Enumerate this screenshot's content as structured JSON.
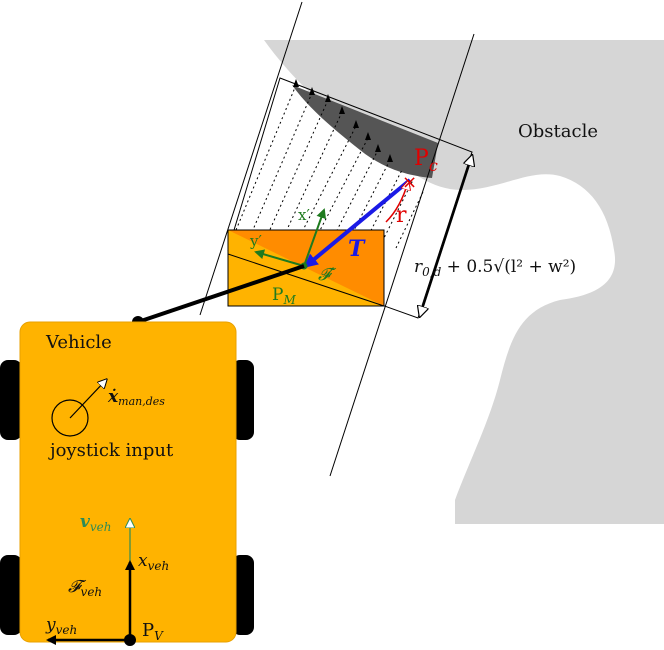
{
  "diagram": {
    "labels": {
      "obstacle": "Obstacle",
      "vehicle": "Vehicle",
      "joystick": "joystick input",
      "x_man_des": "ẋ",
      "x_man_des_sub": "man,des",
      "pc_main": "P",
      "pc_sub": "c",
      "r": "r",
      "T": "T",
      "f_prime": "𝓕′",
      "pm_main": "P",
      "pm_sub": "M",
      "x_prime": "x′",
      "y_prime": "y′",
      "distance_main": "r",
      "distance_sub": "0,d",
      "distance_rest": " + 0.5√(l² + w²)",
      "v_veh": "v",
      "v_veh_sub": "veh",
      "x_veh": "x",
      "x_veh_sub": "veh",
      "y_veh": "y",
      "y_veh_sub": "veh",
      "f_veh": "𝓕",
      "f_veh_sub": "veh",
      "pv_main": "P",
      "pv_sub": "V"
    },
    "colors": {
      "vehicle_fill": "#FFB300",
      "wheel": "#000000",
      "obstacle_light": "#D6D6D6",
      "obstacle_dark": "#555555",
      "body_orange": "#FF8C00",
      "body_light": "#FFB300",
      "arrow_T": "#1A1AE6",
      "green": "#1E7A1E",
      "teal": "#2E8B57",
      "red": "#E00000"
    }
  }
}
